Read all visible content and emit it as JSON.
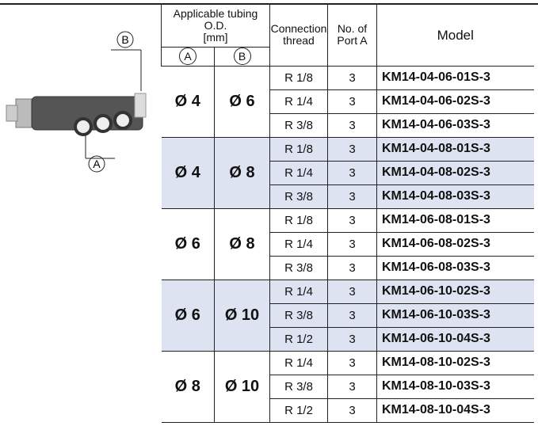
{
  "header": {
    "tubing": [
      "Applicable tubing O.D.",
      "[mm]"
    ],
    "a": "A",
    "b": "B",
    "connection": [
      "Connection",
      "thread"
    ],
    "ports": [
      "No. of",
      "Port A"
    ],
    "model": "Model"
  },
  "image": {
    "label_b": "B",
    "label_a": "A"
  },
  "groups": [
    {
      "a": "Ø 4",
      "b": "Ø 6",
      "rows": [
        [
          "R 1/8",
          3,
          "KM14-04-06-01S-3"
        ],
        [
          "R 1/4",
          3,
          "KM14-04-06-02S-3"
        ],
        [
          "R 3/8",
          3,
          "KM14-04-06-03S-3"
        ]
      ]
    },
    {
      "a": "Ø 4",
      "b": "Ø 8",
      "rows": [
        [
          "R 1/8",
          3,
          "KM14-04-08-01S-3"
        ],
        [
          "R 1/4",
          3,
          "KM14-04-08-02S-3"
        ],
        [
          "R 3/8",
          3,
          "KM14-04-08-03S-3"
        ]
      ]
    },
    {
      "a": "Ø 6",
      "b": "Ø 8",
      "rows": [
        [
          "R 1/8",
          3,
          "KM14-06-08-01S-3"
        ],
        [
          "R 1/4",
          3,
          "KM14-06-08-02S-3"
        ],
        [
          "R 3/8",
          3,
          "KM14-06-08-03S-3"
        ]
      ]
    },
    {
      "a": "Ø 6",
      "b": "Ø 10",
      "rows": [
        [
          "R 1/4",
          3,
          "KM14-06-10-02S-3"
        ],
        [
          "R 3/8",
          3,
          "KM14-06-10-03S-3"
        ],
        [
          "R 1/2",
          3,
          "KM14-06-10-04S-3"
        ]
      ]
    },
    {
      "a": "Ø 8",
      "b": "Ø 10",
      "rows": [
        [
          "R 1/4",
          3,
          "KM14-08-10-02S-3"
        ],
        [
          "R 3/8",
          3,
          "KM14-08-10-03S-3"
        ],
        [
          "R 1/2",
          3,
          "KM14-08-10-04S-3"
        ]
      ]
    }
  ]
}
